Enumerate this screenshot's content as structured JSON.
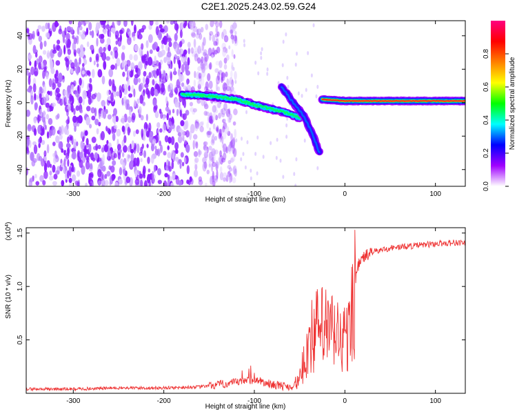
{
  "title": "C2E1.2025.243.02.59.G24",
  "chart_data": [
    {
      "type": "heatmap",
      "xlabel": "Height of straight line (km)",
      "ylabel": "Frequency (Hz)",
      "xlim": [
        -352,
        133
      ],
      "ylim": [
        -50,
        49
      ],
      "x_ticks": [
        -300,
        -200,
        -100,
        0,
        100
      ],
      "y_ticks": [
        -40,
        -20,
        0,
        20,
        40
      ],
      "colorbar": {
        "label": "Normalized spectral amplitude",
        "range": [
          0.0,
          1.0
        ],
        "ticks": [
          "0.0",
          "0.2",
          "0.4",
          "0.6",
          "0.8"
        ],
        "colors": [
          "#ffffff",
          "#a000ff",
          "#0000ff",
          "#00ffff",
          "#00ff00",
          "#ffff00",
          "#ff8000",
          "#ff0000",
          "#ff0080"
        ]
      },
      "features": [
        {
          "description_x_range": [
            -352,
            -150
          ],
          "frequency_range": [
            -50,
            49
          ],
          "amplitude": 0.1,
          "kind": "noise"
        },
        {
          "x": [
            -180,
            -150,
            -120,
            -95,
            -80,
            -65,
            -50
          ],
          "frequency": [
            5,
            4,
            2,
            -2,
            -4,
            -6,
            -9
          ],
          "amplitude": 0.35,
          "kind": "track"
        },
        {
          "x": [
            -70,
            -60,
            -45,
            -35,
            -28
          ],
          "frequency": [
            10,
            2,
            -8,
            -20,
            -30
          ],
          "amplitude": 0.2,
          "kind": "track"
        },
        {
          "x": [
            -25,
            0,
            50,
            100,
            133
          ],
          "frequency": [
            2,
            1,
            1,
            1,
            1
          ],
          "amplitude": 0.9,
          "kind": "track"
        }
      ]
    },
    {
      "type": "line",
      "xlabel": "Height of straight line (km)",
      "ylabel": "SNR (10 * v/v)",
      "y_multiplier": "(x10^4)",
      "xlim": [
        -352,
        133
      ],
      "ylim": [
        0,
        1.55
      ],
      "x_ticks": [
        -300,
        -200,
        -100,
        0,
        100
      ],
      "y_ticks": [
        0.5,
        1.0,
        1.5
      ],
      "color": "#ee3333",
      "x": [
        -352,
        -300,
        -250,
        -200,
        -160,
        -140,
        -120,
        -100,
        -85,
        -70,
        -60,
        -50,
        -45,
        -40,
        -30,
        -20,
        -10,
        0,
        5,
        10,
        15,
        20,
        30,
        50,
        75,
        100,
        120,
        133
      ],
      "y": [
        0.04,
        0.04,
        0.05,
        0.05,
        0.06,
        0.08,
        0.1,
        0.13,
        0.09,
        0.07,
        0.06,
        0.12,
        0.3,
        0.5,
        0.6,
        0.6,
        0.55,
        0.5,
        0.55,
        1.0,
        1.2,
        1.27,
        1.32,
        1.36,
        1.38,
        1.4,
        1.41,
        1.41
      ]
    }
  ]
}
